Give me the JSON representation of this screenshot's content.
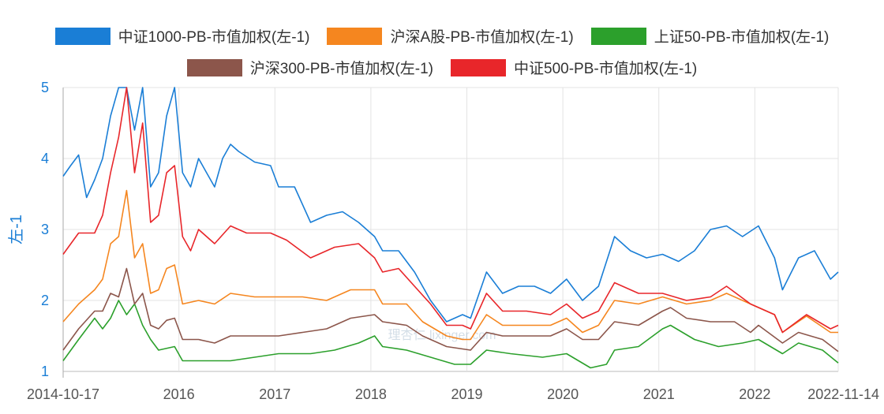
{
  "chart_data": {
    "type": "line",
    "ylabel": "左-1",
    "ylim": [
      1,
      5
    ],
    "yticks": [
      "1",
      "2",
      "3",
      "4",
      "5"
    ],
    "xlim": [
      "2014-10-17",
      "2022-11-14"
    ],
    "xticks": [
      {
        "label": "2014-10-17",
        "date": "2014-10-17"
      },
      {
        "label": "2016",
        "date": "2016-01-01"
      },
      {
        "label": "2017",
        "date": "2017-01-01"
      },
      {
        "label": "2018",
        "date": "2018-01-01"
      },
      {
        "label": "2019",
        "date": "2019-01-01"
      },
      {
        "label": "2020",
        "date": "2020-01-01"
      },
      {
        "label": "2021",
        "date": "2021-01-01"
      },
      {
        "label": "2022",
        "date": "2022-01-01"
      },
      {
        "label": "2022-11-14",
        "date": "2022-11-14"
      }
    ],
    "grid": true,
    "legend_position": "top",
    "watermark": "理杏仁 lixinger.com",
    "series": [
      {
        "name": "中证1000-PB-市值加权(左-1)",
        "color": "#1a7ed6",
        "points": [
          [
            "2014-10",
            3.75
          ],
          [
            "2014-11",
            3.9
          ],
          [
            "2014-12",
            4.05
          ],
          [
            "2015-01",
            3.45
          ],
          [
            "2015-02",
            3.7
          ],
          [
            "2015-03",
            4.0
          ],
          [
            "2015-04",
            4.6
          ],
          [
            "2015-05",
            5
          ],
          [
            "2015-06",
            5
          ],
          [
            "2015-07",
            4.4
          ],
          [
            "2015-08",
            5
          ],
          [
            "2015-09",
            3.6
          ],
          [
            "2015-10",
            3.8
          ],
          [
            "2015-11",
            4.6
          ],
          [
            "2015-12",
            5
          ],
          [
            "2016-01",
            3.8
          ],
          [
            "2016-02",
            3.6
          ],
          [
            "2016-03",
            4.0
          ],
          [
            "2016-04",
            3.8
          ],
          [
            "2016-05",
            3.6
          ],
          [
            "2016-06",
            4.0
          ],
          [
            "2016-07",
            4.2
          ],
          [
            "2016-08",
            4.1
          ],
          [
            "2016-10",
            3.95
          ],
          [
            "2016-12",
            3.9
          ],
          [
            "2017-01",
            3.6
          ],
          [
            "2017-03",
            3.6
          ],
          [
            "2017-05",
            3.1
          ],
          [
            "2017-07",
            3.2
          ],
          [
            "2017-09",
            3.25
          ],
          [
            "2017-11",
            3.1
          ],
          [
            "2018-01",
            2.9
          ],
          [
            "2018-02",
            2.7
          ],
          [
            "2018-04",
            2.7
          ],
          [
            "2018-06",
            2.4
          ],
          [
            "2018-08",
            2.0
          ],
          [
            "2018-10",
            1.7
          ],
          [
            "2018-12",
            1.8
          ],
          [
            "2019-01",
            1.75
          ],
          [
            "2019-03",
            2.4
          ],
          [
            "2019-05",
            2.1
          ],
          [
            "2019-07",
            2.2
          ],
          [
            "2019-09",
            2.2
          ],
          [
            "2019-11",
            2.1
          ],
          [
            "2020-01",
            2.3
          ],
          [
            "2020-03",
            2.0
          ],
          [
            "2020-05",
            2.2
          ],
          [
            "2020-07",
            2.9
          ],
          [
            "2020-09",
            2.7
          ],
          [
            "2020-11",
            2.6
          ],
          [
            "2021-01",
            2.65
          ],
          [
            "2021-03",
            2.55
          ],
          [
            "2021-05",
            2.7
          ],
          [
            "2021-07",
            3.0
          ],
          [
            "2021-09",
            3.05
          ],
          [
            "2021-11",
            2.9
          ],
          [
            "2022-01",
            3.05
          ],
          [
            "2022-03",
            2.6
          ],
          [
            "2022-04",
            2.15
          ],
          [
            "2022-06",
            2.6
          ],
          [
            "2022-08",
            2.7
          ],
          [
            "2022-10",
            2.3
          ],
          [
            "2022-11",
            2.4
          ]
        ]
      },
      {
        "name": "沪深A股-PB-市值加权(左-1)",
        "color": "#f5861f",
        "points": [
          [
            "2014-10",
            1.7
          ],
          [
            "2014-12",
            1.95
          ],
          [
            "2015-02",
            2.15
          ],
          [
            "2015-03",
            2.3
          ],
          [
            "2015-04",
            2.8
          ],
          [
            "2015-05",
            2.9
          ],
          [
            "2015-06",
            3.55
          ],
          [
            "2015-07",
            2.6
          ],
          [
            "2015-08",
            2.8
          ],
          [
            "2015-09",
            2.1
          ],
          [
            "2015-10",
            2.15
          ],
          [
            "2015-11",
            2.45
          ],
          [
            "2015-12",
            2.5
          ],
          [
            "2016-01",
            1.95
          ],
          [
            "2016-03",
            2.0
          ],
          [
            "2016-05",
            1.95
          ],
          [
            "2016-07",
            2.1
          ],
          [
            "2016-10",
            2.05
          ],
          [
            "2017-01",
            2.05
          ],
          [
            "2017-04",
            2.05
          ],
          [
            "2017-07",
            2.0
          ],
          [
            "2017-10",
            2.15
          ],
          [
            "2018-01",
            2.15
          ],
          [
            "2018-02",
            1.95
          ],
          [
            "2018-05",
            1.95
          ],
          [
            "2018-07",
            1.7
          ],
          [
            "2018-10",
            1.5
          ],
          [
            "2018-12",
            1.45
          ],
          [
            "2019-01",
            1.45
          ],
          [
            "2019-03",
            1.8
          ],
          [
            "2019-05",
            1.65
          ],
          [
            "2019-08",
            1.65
          ],
          [
            "2019-11",
            1.65
          ],
          [
            "2020-01",
            1.75
          ],
          [
            "2020-03",
            1.55
          ],
          [
            "2020-05",
            1.65
          ],
          [
            "2020-07",
            2.0
          ],
          [
            "2020-10",
            1.95
          ],
          [
            "2021-01",
            2.05
          ],
          [
            "2021-04",
            1.95
          ],
          [
            "2021-07",
            2.0
          ],
          [
            "2021-09",
            2.1
          ],
          [
            "2021-12",
            1.95
          ],
          [
            "2022-03",
            1.8
          ],
          [
            "2022-04",
            1.55
          ],
          [
            "2022-07",
            1.78
          ],
          [
            "2022-10",
            1.55
          ],
          [
            "2022-11",
            1.55
          ]
        ]
      },
      {
        "name": "上证50-PB-市值加权(左-1)",
        "color": "#2ca02c",
        "points": [
          [
            "2014-10",
            1.15
          ],
          [
            "2014-12",
            1.45
          ],
          [
            "2015-02",
            1.75
          ],
          [
            "2015-03",
            1.6
          ],
          [
            "2015-04",
            1.75
          ],
          [
            "2015-05",
            2.0
          ],
          [
            "2015-06",
            1.8
          ],
          [
            "2015-07",
            1.95
          ],
          [
            "2015-08",
            1.65
          ],
          [
            "2015-09",
            1.45
          ],
          [
            "2015-10",
            1.3
          ],
          [
            "2015-12",
            1.35
          ],
          [
            "2016-01",
            1.15
          ],
          [
            "2016-04",
            1.15
          ],
          [
            "2016-07",
            1.15
          ],
          [
            "2016-10",
            1.2
          ],
          [
            "2017-01",
            1.25
          ],
          [
            "2017-05",
            1.25
          ],
          [
            "2017-08",
            1.3
          ],
          [
            "2017-11",
            1.4
          ],
          [
            "2018-01",
            1.5
          ],
          [
            "2018-02",
            1.35
          ],
          [
            "2018-05",
            1.3
          ],
          [
            "2018-08",
            1.2
          ],
          [
            "2018-11",
            1.1
          ],
          [
            "2019-01",
            1.1
          ],
          [
            "2019-03",
            1.3
          ],
          [
            "2019-06",
            1.25
          ],
          [
            "2019-10",
            1.2
          ],
          [
            "2020-01",
            1.25
          ],
          [
            "2020-04",
            1.05
          ],
          [
            "2020-06",
            1.1
          ],
          [
            "2020-07",
            1.3
          ],
          [
            "2020-10",
            1.35
          ],
          [
            "2021-01",
            1.6
          ],
          [
            "2021-02",
            1.65
          ],
          [
            "2021-05",
            1.45
          ],
          [
            "2021-08",
            1.35
          ],
          [
            "2021-11",
            1.4
          ],
          [
            "2022-01",
            1.45
          ],
          [
            "2022-04",
            1.25
          ],
          [
            "2022-06",
            1.4
          ],
          [
            "2022-09",
            1.3
          ],
          [
            "2022-11",
            1.12
          ]
        ]
      },
      {
        "name": "沪深300-PB-市值加权(左-1)",
        "color": "#8c564b",
        "points": [
          [
            "2014-10",
            1.3
          ],
          [
            "2014-12",
            1.6
          ],
          [
            "2015-02",
            1.85
          ],
          [
            "2015-03",
            1.85
          ],
          [
            "2015-04",
            2.1
          ],
          [
            "2015-05",
            2.05
          ],
          [
            "2015-06",
            2.45
          ],
          [
            "2015-07",
            1.95
          ],
          [
            "2015-08",
            2.1
          ],
          [
            "2015-09",
            1.65
          ],
          [
            "2015-10",
            1.6
          ],
          [
            "2015-11",
            1.72
          ],
          [
            "2015-12",
            1.75
          ],
          [
            "2016-01",
            1.45
          ],
          [
            "2016-03",
            1.45
          ],
          [
            "2016-05",
            1.4
          ],
          [
            "2016-07",
            1.5
          ],
          [
            "2016-10",
            1.5
          ],
          [
            "2017-01",
            1.5
          ],
          [
            "2017-04",
            1.55
          ],
          [
            "2017-07",
            1.6
          ],
          [
            "2017-10",
            1.75
          ],
          [
            "2018-01",
            1.8
          ],
          [
            "2018-02",
            1.7
          ],
          [
            "2018-05",
            1.65
          ],
          [
            "2018-07",
            1.5
          ],
          [
            "2018-10",
            1.35
          ],
          [
            "2019-01",
            1.3
          ],
          [
            "2019-03",
            1.55
          ],
          [
            "2019-05",
            1.5
          ],
          [
            "2019-08",
            1.5
          ],
          [
            "2019-11",
            1.5
          ],
          [
            "2020-01",
            1.6
          ],
          [
            "2020-03",
            1.45
          ],
          [
            "2020-05",
            1.45
          ],
          [
            "2020-07",
            1.7
          ],
          [
            "2020-10",
            1.65
          ],
          [
            "2021-01",
            1.85
          ],
          [
            "2021-02",
            1.9
          ],
          [
            "2021-04",
            1.75
          ],
          [
            "2021-07",
            1.7
          ],
          [
            "2021-10",
            1.7
          ],
          [
            "2021-12",
            1.55
          ],
          [
            "2022-01",
            1.65
          ],
          [
            "2022-04",
            1.4
          ],
          [
            "2022-06",
            1.55
          ],
          [
            "2022-09",
            1.45
          ],
          [
            "2022-11",
            1.28
          ]
        ]
      },
      {
        "name": "中证500-PB-市值加权(左-1)",
        "color": "#e8262a",
        "points": [
          [
            "2014-10",
            2.65
          ],
          [
            "2014-12",
            2.95
          ],
          [
            "2015-02",
            2.95
          ],
          [
            "2015-03",
            3.2
          ],
          [
            "2015-04",
            3.8
          ],
          [
            "2015-05",
            4.3
          ],
          [
            "2015-06",
            5.0
          ],
          [
            "2015-07",
            3.8
          ],
          [
            "2015-08",
            4.5
          ],
          [
            "2015-09",
            3.1
          ],
          [
            "2015-10",
            3.2
          ],
          [
            "2015-11",
            3.8
          ],
          [
            "2015-12",
            3.9
          ],
          [
            "2016-01",
            2.9
          ],
          [
            "2016-02",
            2.7
          ],
          [
            "2016-03",
            3.0
          ],
          [
            "2016-05",
            2.8
          ],
          [
            "2016-07",
            3.05
          ],
          [
            "2016-09",
            2.95
          ],
          [
            "2016-12",
            2.95
          ],
          [
            "2017-02",
            2.85
          ],
          [
            "2017-05",
            2.6
          ],
          [
            "2017-08",
            2.75
          ],
          [
            "2017-11",
            2.8
          ],
          [
            "2018-01",
            2.6
          ],
          [
            "2018-02",
            2.4
          ],
          [
            "2018-04",
            2.45
          ],
          [
            "2018-06",
            2.2
          ],
          [
            "2018-08",
            1.95
          ],
          [
            "2018-10",
            1.65
          ],
          [
            "2018-12",
            1.65
          ],
          [
            "2019-01",
            1.6
          ],
          [
            "2019-03",
            2.1
          ],
          [
            "2019-05",
            1.85
          ],
          [
            "2019-08",
            1.85
          ],
          [
            "2019-11",
            1.8
          ],
          [
            "2020-01",
            1.95
          ],
          [
            "2020-03",
            1.75
          ],
          [
            "2020-05",
            1.85
          ],
          [
            "2020-07",
            2.25
          ],
          [
            "2020-10",
            2.1
          ],
          [
            "2021-01",
            2.1
          ],
          [
            "2021-04",
            2.0
          ],
          [
            "2021-07",
            2.05
          ],
          [
            "2021-09",
            2.2
          ],
          [
            "2021-12",
            1.95
          ],
          [
            "2022-03",
            1.8
          ],
          [
            "2022-04",
            1.55
          ],
          [
            "2022-07",
            1.8
          ],
          [
            "2022-10",
            1.6
          ],
          [
            "2022-11",
            1.65
          ]
        ]
      }
    ]
  }
}
